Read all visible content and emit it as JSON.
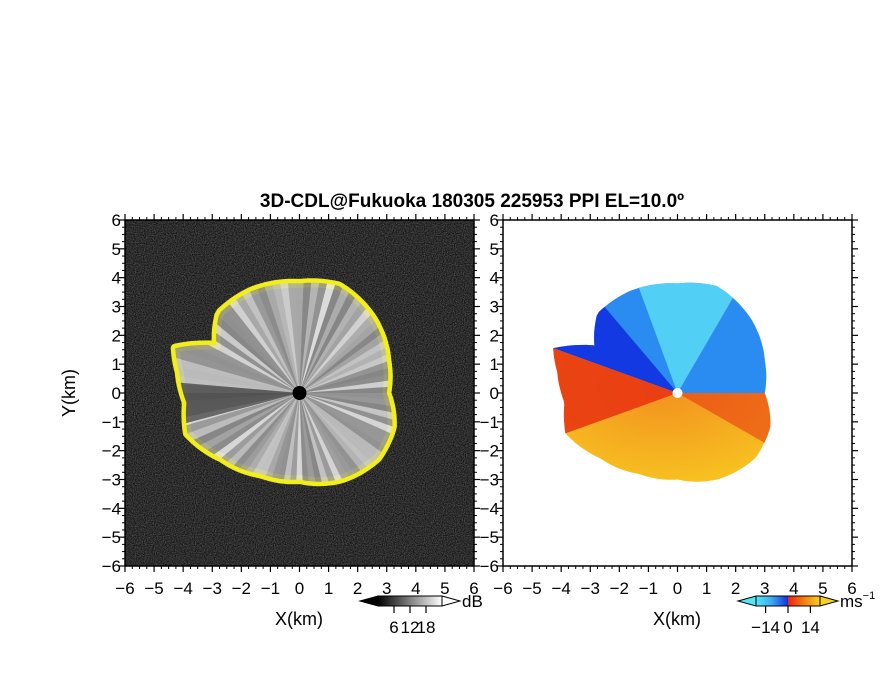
{
  "chart_data": [
    {
      "type": "heatmap",
      "title": "3D-CDL@Fukuoka 180305 225953 PPI EL=10.0º",
      "panel": "reflectivity",
      "xlabel": "X(km)",
      "ylabel": "Y(km)",
      "xlim": [
        -6,
        6
      ],
      "ylim": [
        -6,
        6
      ],
      "x_ticks": [
        "−6",
        "−5",
        "−4",
        "−3",
        "−2",
        "−1",
        "0",
        "1",
        "2",
        "3",
        "4",
        "5",
        "6"
      ],
      "y_ticks": [
        "6",
        "5",
        "4",
        "3",
        "2",
        "1",
        "0",
        "−1",
        "−2",
        "−3",
        "−4",
        "−5",
        "−6"
      ],
      "colorbar": {
        "unit": "dB",
        "tick_labels": [
          "6",
          "12",
          "18"
        ],
        "tick_values": [
          6,
          12,
          18
        ],
        "range": [
          0,
          24
        ],
        "colors": [
          "#000000",
          "#ffffff"
        ]
      },
      "echo_edge_color": "#f2ee1a",
      "boundary_radius_km": [
        {
          "deg": 0,
          "r": 3.0
        },
        {
          "deg": 20,
          "r": 3.2
        },
        {
          "deg": 45,
          "r": 3.6
        },
        {
          "deg": 70,
          "r": 3.95
        },
        {
          "deg": 90,
          "r": 3.8
        },
        {
          "deg": 115,
          "r": 3.9
        },
        {
          "deg": 135,
          "r": 3.9
        },
        {
          "deg": 150,
          "r": 3.3
        },
        {
          "deg": 160,
          "r": 4.55
        },
        {
          "deg": 170,
          "r": 4.2
        },
        {
          "deg": 185,
          "r": 3.9
        },
        {
          "deg": 200,
          "r": 4.1
        },
        {
          "deg": 220,
          "r": 3.5
        },
        {
          "deg": 245,
          "r": 3.1
        },
        {
          "deg": 270,
          "r": 3.0
        },
        {
          "deg": 295,
          "r": 3.3
        },
        {
          "deg": 320,
          "r": 3.5
        },
        {
          "deg": 340,
          "r": 3.4
        },
        {
          "deg": 360,
          "r": 3.0
        }
      ]
    },
    {
      "type": "heatmap",
      "panel": "doppler_velocity",
      "xlabel": "X(km)",
      "xlim": [
        -6,
        6
      ],
      "ylim": [
        -6,
        6
      ],
      "x_ticks": [
        "−6",
        "−5",
        "−4",
        "−3",
        "−2",
        "−1",
        "0",
        "1",
        "2",
        "3",
        "4",
        "5",
        "6"
      ],
      "y_ticks": [
        "6",
        "5",
        "4",
        "3",
        "2",
        "1",
        "0",
        "−1",
        "−2",
        "−3",
        "−4",
        "−5",
        "−6"
      ],
      "colorbar": {
        "unit": "ms",
        "unit_exponent": "−1",
        "tick_labels": [
          "−14",
          "0",
          "14"
        ],
        "tick_values": [
          -14,
          0,
          14
        ],
        "range": [
          -20,
          20
        ],
        "colors": [
          "#1030e0",
          "#3aa8f0",
          "#55e6f5",
          "#f02010",
          "#f08010",
          "#f8d020"
        ]
      },
      "velocity_colors": {
        "toward_north": "#2a8cf0",
        "toward_north_edge": "#1030e0",
        "top_center": "#5ce0f5",
        "toward_south": "#f29020",
        "toward_south_edge": "#e83010",
        "far_south": "#f7c020"
      },
      "boundary_radius_km": [
        {
          "deg": 0,
          "r": 3.0
        },
        {
          "deg": 20,
          "r": 3.2
        },
        {
          "deg": 45,
          "r": 3.6
        },
        {
          "deg": 70,
          "r": 3.95
        },
        {
          "deg": 90,
          "r": 3.8
        },
        {
          "deg": 115,
          "r": 3.9
        },
        {
          "deg": 135,
          "r": 3.9
        },
        {
          "deg": 150,
          "r": 3.3
        },
        {
          "deg": 160,
          "r": 4.55
        },
        {
          "deg": 170,
          "r": 4.2
        },
        {
          "deg": 185,
          "r": 3.9
        },
        {
          "deg": 200,
          "r": 4.1
        },
        {
          "deg": 220,
          "r": 3.5
        },
        {
          "deg": 245,
          "r": 3.1
        },
        {
          "deg": 270,
          "r": 3.0
        },
        {
          "deg": 295,
          "r": 3.3
        },
        {
          "deg": 320,
          "r": 3.5
        },
        {
          "deg": 340,
          "r": 3.4
        },
        {
          "deg": 360,
          "r": 3.0
        }
      ]
    }
  ]
}
